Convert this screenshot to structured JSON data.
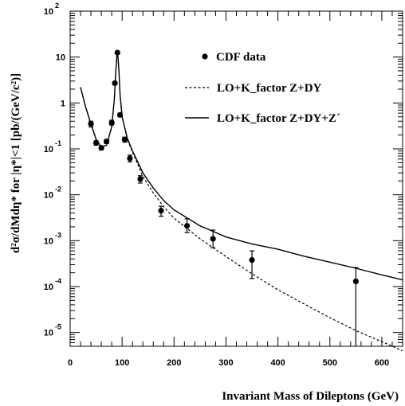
{
  "chart_data": {
    "type": "scatter",
    "xlabel": "Invariant Mass of Dileptons (GeV)",
    "ylabel": "d²σ/dMdη* for |η*|<1 [pb/(GeV/c²)]",
    "xlim": [
      0,
      640
    ],
    "ylim": [
      5e-06,
      100
    ],
    "yscale": "log",
    "x_ticks": [
      0,
      100,
      200,
      300,
      400,
      500,
      600
    ],
    "y_ticks": [
      {
        "value": 100,
        "mantissa": "10",
        "exponent": "2"
      },
      {
        "value": 10,
        "mantissa": "10",
        "exponent": ""
      },
      {
        "value": 1,
        "mantissa": "1",
        "exponent": ""
      },
      {
        "value": 0.1,
        "mantissa": "10",
        "exponent": "-1"
      },
      {
        "value": 0.01,
        "mantissa": "10",
        "exponent": "-2"
      },
      {
        "value": 0.001,
        "mantissa": "10",
        "exponent": "-3"
      },
      {
        "value": 0.0001,
        "mantissa": "10",
        "exponent": "-4"
      },
      {
        "value": 1e-05,
        "mantissa": "10",
        "exponent": "-5"
      }
    ],
    "legend_position": "top-right",
    "series": [
      {
        "name": "CDF data",
        "style": "markers-with-errors",
        "points": [
          {
            "x": 40,
            "y": 0.35,
            "lo": 0.3,
            "hi": 0.4
          },
          {
            "x": 50,
            "y": 0.135,
            "lo": 0.12,
            "hi": 0.15
          },
          {
            "x": 60,
            "y": 0.105,
            "lo": 0.095,
            "hi": 0.115
          },
          {
            "x": 70,
            "y": 0.145,
            "lo": 0.13,
            "hi": 0.16
          },
          {
            "x": 80,
            "y": 0.37,
            "lo": 0.33,
            "hi": 0.42
          },
          {
            "x": 86,
            "y": 2.7,
            "lo": 2.5,
            "hi": 2.9
          },
          {
            "x": 91,
            "y": 12.5,
            "lo": 11.8,
            "hi": 13.2
          },
          {
            "x": 96,
            "y": 0.55,
            "lo": 0.5,
            "hi": 0.6
          },
          {
            "x": 105,
            "y": 0.16,
            "lo": 0.14,
            "hi": 0.18
          },
          {
            "x": 115,
            "y": 0.062,
            "lo": 0.052,
            "hi": 0.073
          },
          {
            "x": 135,
            "y": 0.022,
            "lo": 0.018,
            "hi": 0.026
          },
          {
            "x": 175,
            "y": 0.0045,
            "lo": 0.0034,
            "hi": 0.0056
          },
          {
            "x": 225,
            "y": 0.0021,
            "lo": 0.0015,
            "hi": 0.003
          },
          {
            "x": 275,
            "y": 0.0011,
            "lo": 0.0007,
            "hi": 0.0017
          },
          {
            "x": 350,
            "y": 0.00038,
            "lo": 0.00015,
            "hi": 0.0006
          },
          {
            "x": 550,
            "y": 0.00013,
            "lo": 5e-06,
            "hi": 0.00026
          }
        ]
      },
      {
        "name": "LO+K_factor  Z+DY",
        "style": "dashed",
        "x": [
          20,
          30,
          40,
          50,
          60,
          70,
          80,
          85,
          88,
          90,
          91,
          92,
          94,
          96,
          100,
          110,
          120,
          140,
          160,
          180,
          200,
          250,
          300,
          350,
          400,
          450,
          500,
          550,
          600,
          640
        ],
        "y": [
          2.2,
          0.8,
          0.35,
          0.16,
          0.11,
          0.12,
          0.3,
          1.2,
          5,
          10.5,
          12,
          10.5,
          5,
          1.5,
          0.5,
          0.16,
          0.085,
          0.025,
          0.011,
          0.0055,
          0.0031,
          0.0011,
          0.00045,
          0.00019,
          8.5e-05,
          4.2e-05,
          2.1e-05,
          1.1e-05,
          6.3e-06,
          4e-06
        ]
      },
      {
        "name": "LO+K_factor  Z+DY+Z´",
        "style": "solid",
        "x": [
          20,
          30,
          40,
          50,
          60,
          70,
          80,
          85,
          88,
          90,
          91,
          92,
          94,
          96,
          100,
          110,
          120,
          140,
          160,
          180,
          200,
          250,
          300,
          350,
          400,
          450,
          500,
          550,
          600,
          640
        ],
        "y": [
          2.2,
          0.8,
          0.35,
          0.16,
          0.11,
          0.12,
          0.3,
          1.2,
          5,
          10.5,
          12,
          10.5,
          5,
          1.5,
          0.5,
          0.17,
          0.09,
          0.03,
          0.014,
          0.0075,
          0.0047,
          0.0021,
          0.0012,
          0.00085,
          0.00065,
          0.00046,
          0.00034,
          0.00025,
          0.00018,
          0.00014
        ]
      }
    ]
  }
}
